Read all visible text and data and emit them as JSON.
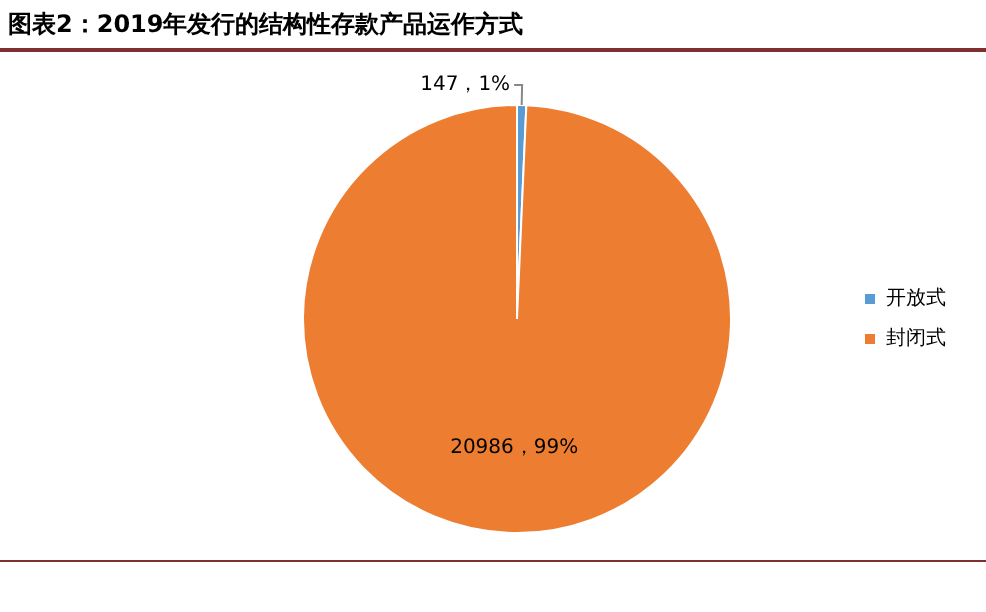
{
  "chart_data": {
    "type": "pie",
    "title": "图表2：2019年发行的结构性存款产品运作方式",
    "categories": [
      "开放式",
      "封闭式"
    ],
    "values": [
      147,
      20986
    ],
    "colors": [
      "#5b9bd5",
      "#ed7d31"
    ],
    "value_labels": [
      "147，1%",
      "20986，99%"
    ],
    "legend": "right"
  }
}
